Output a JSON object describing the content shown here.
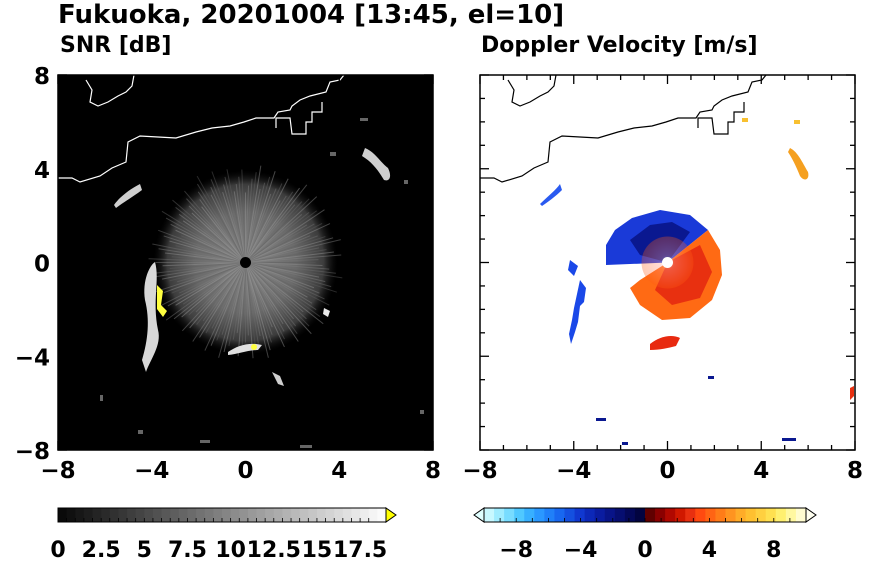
{
  "figure": {
    "title": "Fukuoka, 20201004 [13:45, el=10]"
  },
  "panels": {
    "snr": {
      "title": "SNR [dB]"
    },
    "doppler": {
      "title": "Doppler Velocity [m/s]"
    }
  },
  "colors": {
    "radar_marker": "#000000",
    "doppler_marker": "#ffffff",
    "coastline": "#000000",
    "snr_background": "#000000",
    "extend_triangle": "#ffff00"
  },
  "chart_data": [
    {
      "type": "heatmap",
      "name_in_image": "SNR [dB]",
      "title": "SNR [dB]",
      "xlim": [
        -8,
        8
      ],
      "ylim": [
        -8,
        8
      ],
      "xticks": [
        "-8",
        "-4",
        "0",
        "4",
        "8"
      ],
      "yticks": [
        "8",
        "4",
        "0",
        "-4",
        "-8"
      ],
      "grid": false,
      "colorbar": {
        "orientation": "horizontal",
        "range": [
          0,
          19
        ],
        "ticks": [
          "0",
          "2.5",
          "5",
          "7.5",
          "10",
          "12.5",
          "15",
          "17.5"
        ],
        "tick_values": [
          0,
          2.5,
          5,
          7.5,
          10,
          12.5,
          15,
          17.5
        ],
        "extend": "max",
        "colormap": "black-to-white grayscale, yellow overflow"
      },
      "features": [
        {
          "label": "near-radar clutter disk",
          "center": [
            0,
            0
          ],
          "radius_km": 3.4,
          "snr_db": 8
        },
        {
          "label": "echo band",
          "x": -3.7,
          "y": -1.5,
          "snr_db": 18
        },
        {
          "label": "echo",
          "x": 0,
          "y": -3.6,
          "snr_db": 17
        },
        {
          "label": "echo",
          "x": 5.8,
          "y": 4.3,
          "snr_db": 16
        },
        {
          "label": "echo",
          "x": -5.2,
          "y": 3.0,
          "snr_db": 16
        },
        {
          "label": "echo",
          "x": 1.7,
          "y": -5.0,
          "snr_db": 15
        },
        {
          "label": "echo",
          "x": 3.5,
          "y": -2.1,
          "snr_db": 17
        }
      ]
    },
    {
      "type": "heatmap",
      "title": "Doppler Velocity [m/s]",
      "xlim": [
        -8,
        8
      ],
      "ylim": [
        -8,
        8
      ],
      "xticks": [
        "-8",
        "-4",
        "0",
        "4",
        "8"
      ],
      "yticks": [
        "8",
        "4",
        "0",
        "-4",
        "-8"
      ],
      "grid": false,
      "colorbar": {
        "orientation": "horizontal",
        "range": [
          -10,
          10
        ],
        "ticks": [
          "-8",
          "-4",
          "0",
          "4",
          "8"
        ],
        "tick_values": [
          -8,
          -4,
          0,
          4,
          8
        ],
        "extend": "both",
        "colormap": "light cyan - blue - dark navy | dark red - orange - yellow - pale yellow"
      },
      "features": [
        {
          "label": "approaching sector (NW half)",
          "center": [
            0,
            0
          ],
          "velocity_ms": -6
        },
        {
          "label": "receding sector (SE half)",
          "center": [
            0,
            0
          ],
          "velocity_ms": 5
        },
        {
          "label": "echo",
          "x": -3.6,
          "y": -1.5,
          "velocity_ms": -6
        },
        {
          "label": "echo",
          "x": 0,
          "y": -3.6,
          "velocity_ms": 3
        },
        {
          "label": "echo",
          "x": 5.8,
          "y": 4.3,
          "velocity_ms": 8
        },
        {
          "label": "echo",
          "x": -4.7,
          "y": 3.0,
          "velocity_ms": -5
        },
        {
          "label": "echo",
          "x": 7.8,
          "y": -5.8,
          "velocity_ms": 3
        }
      ]
    }
  ]
}
